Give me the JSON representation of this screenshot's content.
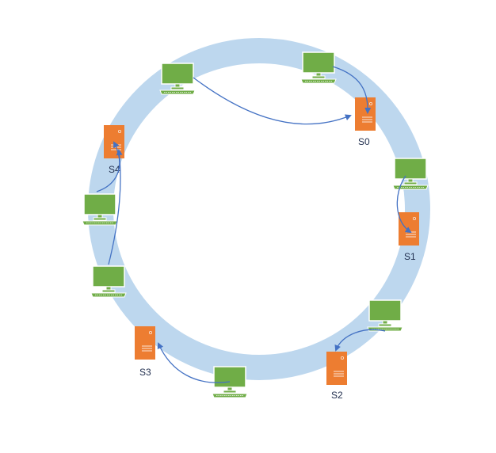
{
  "colors": {
    "ring": "#bdd7ee",
    "server_fill": "#ed7d31",
    "server_detail": "#fbe5d6",
    "client_fill": "#70ad47",
    "client_dark": "#548235",
    "client_stroke": "#ffffff",
    "arrow": "#4472c4",
    "label": "#1f2d4d"
  },
  "servers": [
    {
      "id": "S0",
      "label": "S0"
    },
    {
      "id": "S1",
      "label": "S1"
    },
    {
      "id": "S2",
      "label": "S2"
    },
    {
      "id": "S3",
      "label": "S3"
    },
    {
      "id": "S4",
      "label": "S4"
    }
  ],
  "clients": [
    {
      "id": "c1",
      "icon": "computer-icon",
      "maps_to": "S0"
    },
    {
      "id": "c2",
      "icon": "computer-icon",
      "maps_to": "S0"
    },
    {
      "id": "c3",
      "icon": "computer-icon",
      "maps_to": "S1"
    },
    {
      "id": "c4",
      "icon": "computer-icon",
      "maps_to": "S2"
    },
    {
      "id": "c5",
      "icon": "computer-icon",
      "maps_to": "S3"
    },
    {
      "id": "c6",
      "icon": "computer-icon",
      "maps_to": "S4"
    },
    {
      "id": "c7",
      "icon": "computer-icon",
      "maps_to": "S4"
    }
  ],
  "server_icon": "server-icon"
}
